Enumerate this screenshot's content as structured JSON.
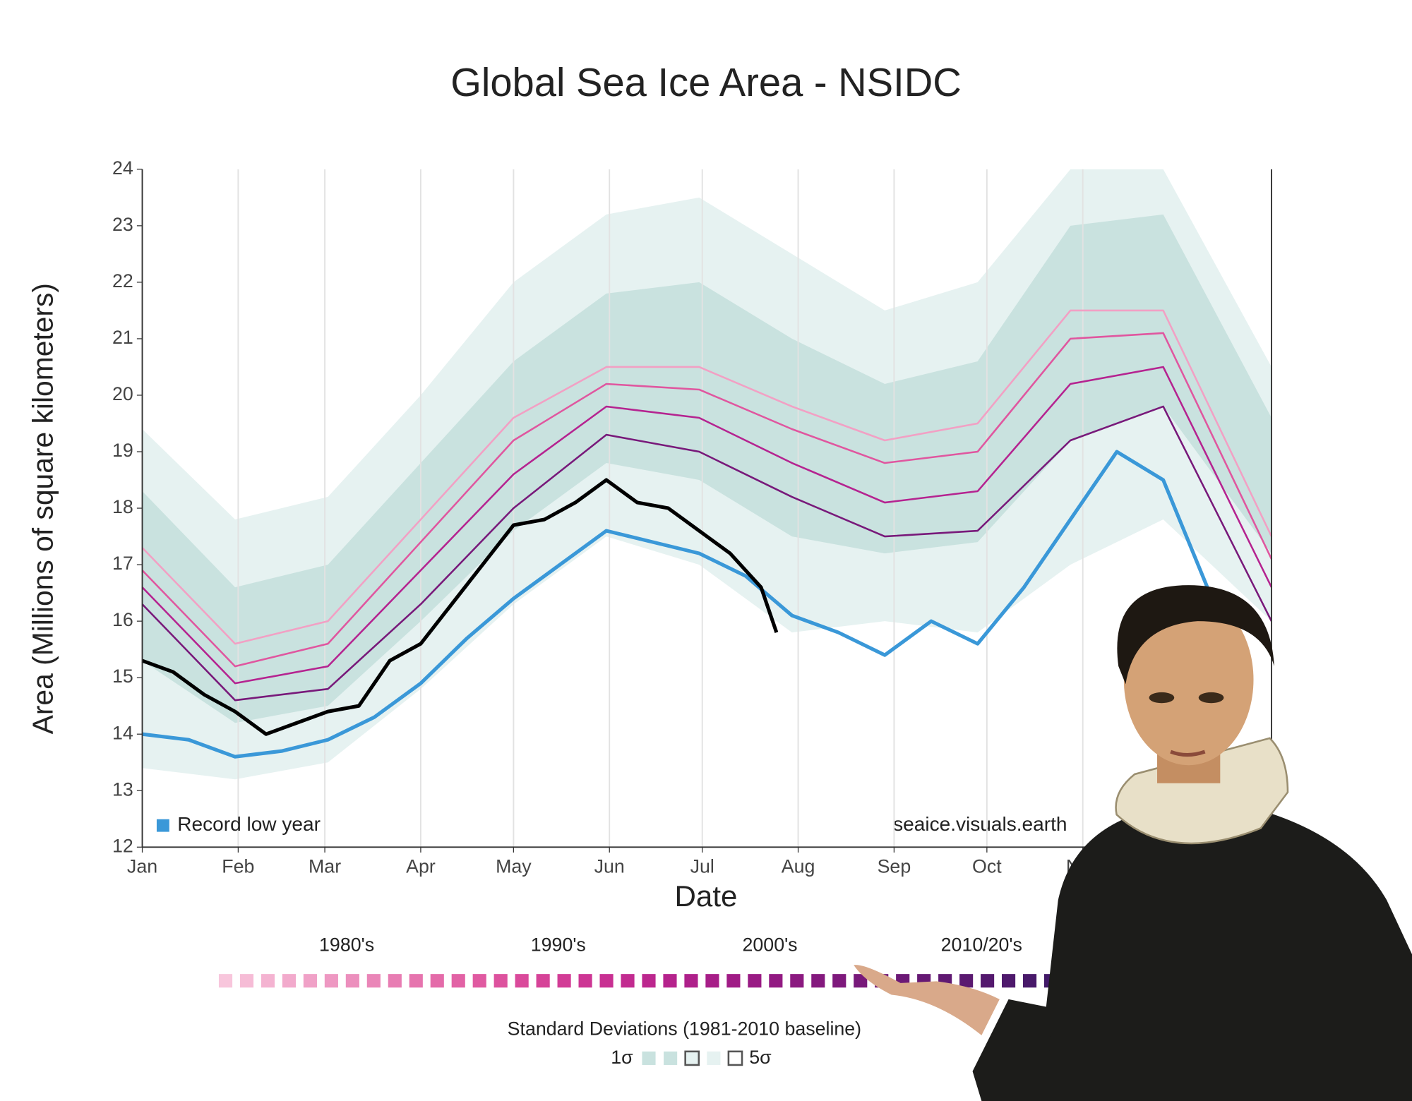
{
  "chart_data": {
    "type": "line",
    "title": "Global Sea Ice Area - NSIDC",
    "x_label": "Date",
    "y_label": "Area (Millions of square kilometers)",
    "annotation": "seaice.visuals.earth",
    "xlim": [
      0,
      365
    ],
    "ylim": [
      12,
      24
    ],
    "yticks": [
      12,
      13,
      14,
      15,
      16,
      17,
      18,
      19,
      20,
      21,
      22,
      23,
      24
    ],
    "xticks": [
      {
        "value": 0,
        "label": "Jan"
      },
      {
        "value": 31,
        "label": "Feb"
      },
      {
        "value": 59,
        "label": "Mar"
      },
      {
        "value": 90,
        "label": "Apr"
      },
      {
        "value": 120,
        "label": "May"
      },
      {
        "value": 151,
        "label": "Jun"
      },
      {
        "value": 181,
        "label": "Jul"
      },
      {
        "value": 212,
        "label": "Aug"
      },
      {
        "value": 243,
        "label": "Sep"
      },
      {
        "value": 273,
        "label": "Oct"
      },
      {
        "value": 304,
        "label": "Nov"
      }
    ],
    "grid": "x",
    "legend_position": "lower left",
    "bands_title": "Standard Deviations (1981-2010 baseline)",
    "bands": [
      {
        "name": "5σ",
        "color": "#e6f2f1",
        "x": [
          0,
          30,
          60,
          90,
          120,
          150,
          180,
          210,
          240,
          270,
          300,
          330,
          365
        ],
        "lower": [
          13.4,
          13.2,
          13.5,
          14.8,
          16.3,
          17.5,
          17.0,
          15.8,
          16.0,
          15.8,
          17.0,
          17.8,
          16.0
        ],
        "upper": [
          19.4,
          17.8,
          18.2,
          20.0,
          22.0,
          23.2,
          23.5,
          22.5,
          21.5,
          22.0,
          24.0,
          24.0,
          20.5
        ]
      },
      {
        "name": "1σ",
        "color": "#c9e2df",
        "x": [
          0,
          30,
          60,
          90,
          120,
          150,
          180,
          210,
          240,
          270,
          300,
          330,
          365
        ],
        "lower": [
          15.3,
          14.2,
          14.5,
          16.0,
          17.6,
          18.8,
          18.5,
          17.5,
          17.2,
          17.4,
          19.2,
          19.8,
          17.2
        ],
        "upper": [
          18.3,
          16.6,
          17.0,
          18.8,
          20.6,
          21.8,
          22.0,
          21.0,
          20.2,
          20.6,
          23.0,
          23.2,
          19.6
        ]
      }
    ],
    "decades": {
      "labels": [
        "1980's",
        "1990's",
        "2000's",
        "2010/20's"
      ],
      "colors": [
        "#f8c6dc",
        "#f6bcd6",
        "#f4b3d1",
        "#f2aacc",
        "#f0a1c7",
        "#ee98c2",
        "#ec8fbd",
        "#ea86b8",
        "#e87db3",
        "#e674ae",
        "#e46ba9",
        "#e262a5",
        "#e05aa1",
        "#dd529e",
        "#da4a9b",
        "#d64398",
        "#d23c96",
        "#cd3694",
        "#c83092",
        "#c22b90",
        "#bc278e",
        "#b5238c",
        "#ae208a",
        "#a71e88",
        "#a01c86",
        "#991b84",
        "#921a82",
        "#8b1a80",
        "#84197e",
        "#7e197c",
        "#78197a",
        "#721978",
        "#6c1976",
        "#661974",
        "#601972",
        "#5a1970",
        "#54196e",
        "#4e196c",
        "#48196a",
        "#421968"
      ]
    },
    "series": [
      {
        "name": "1980's",
        "color": "#f2a0c4",
        "x": [
          0,
          30,
          60,
          90,
          120,
          150,
          180,
          210,
          240,
          270,
          300,
          330,
          365
        ],
        "values": [
          17.3,
          15.6,
          16.0,
          17.8,
          19.6,
          20.5,
          20.5,
          19.8,
          19.2,
          19.5,
          21.5,
          21.5,
          17.5
        ]
      },
      {
        "name": "1990's",
        "color": "#e0569f",
        "x": [
          0,
          30,
          60,
          90,
          120,
          150,
          180,
          210,
          240,
          270,
          300,
          330,
          365
        ],
        "values": [
          16.9,
          15.2,
          15.6,
          17.4,
          19.2,
          20.2,
          20.1,
          19.4,
          18.8,
          19.0,
          21.0,
          21.1,
          17.1
        ]
      },
      {
        "name": "2000's",
        "color": "#b52390",
        "x": [
          0,
          30,
          60,
          90,
          120,
          150,
          180,
          210,
          240,
          270,
          300,
          330,
          365
        ],
        "values": [
          16.6,
          14.9,
          15.2,
          16.9,
          18.6,
          19.8,
          19.6,
          18.8,
          18.1,
          18.3,
          20.2,
          20.5,
          16.6
        ]
      },
      {
        "name": "2010/20's",
        "color": "#78197a",
        "x": [
          0,
          30,
          60,
          90,
          120,
          150,
          180,
          210,
          240,
          270,
          300,
          330,
          365
        ],
        "values": [
          16.3,
          14.6,
          14.8,
          16.3,
          18.0,
          19.3,
          19.0,
          18.2,
          17.5,
          17.6,
          19.2,
          19.8,
          16.0
        ]
      },
      {
        "name": "Record low year",
        "color": "#3a98d8",
        "x": [
          0,
          15,
          30,
          45,
          60,
          75,
          90,
          105,
          120,
          135,
          150,
          165,
          180,
          195,
          210,
          225,
          240,
          255,
          270,
          285,
          300,
          315,
          330,
          345
        ],
        "values": [
          14.0,
          13.9,
          13.6,
          13.7,
          13.9,
          14.3,
          14.9,
          15.7,
          16.4,
          17.0,
          17.6,
          17.4,
          17.2,
          16.8,
          16.1,
          15.8,
          15.4,
          16.0,
          15.6,
          16.6,
          17.8,
          19.0,
          18.5,
          16.5
        ],
        "legend": true
      },
      {
        "color": "#000000",
        "x": [
          0,
          10,
          20,
          30,
          40,
          50,
          60,
          70,
          80,
          90,
          100,
          110,
          120,
          130,
          140,
          150,
          160,
          170,
          180,
          190,
          200,
          205
        ],
        "values": [
          15.3,
          15.1,
          14.7,
          14.4,
          14.0,
          14.2,
          14.4,
          14.5,
          15.3,
          15.6,
          16.3,
          17.0,
          17.7,
          17.8,
          18.1,
          18.5,
          18.1,
          18.0,
          17.6,
          17.2,
          16.6,
          15.8
        ]
      }
    ]
  }
}
